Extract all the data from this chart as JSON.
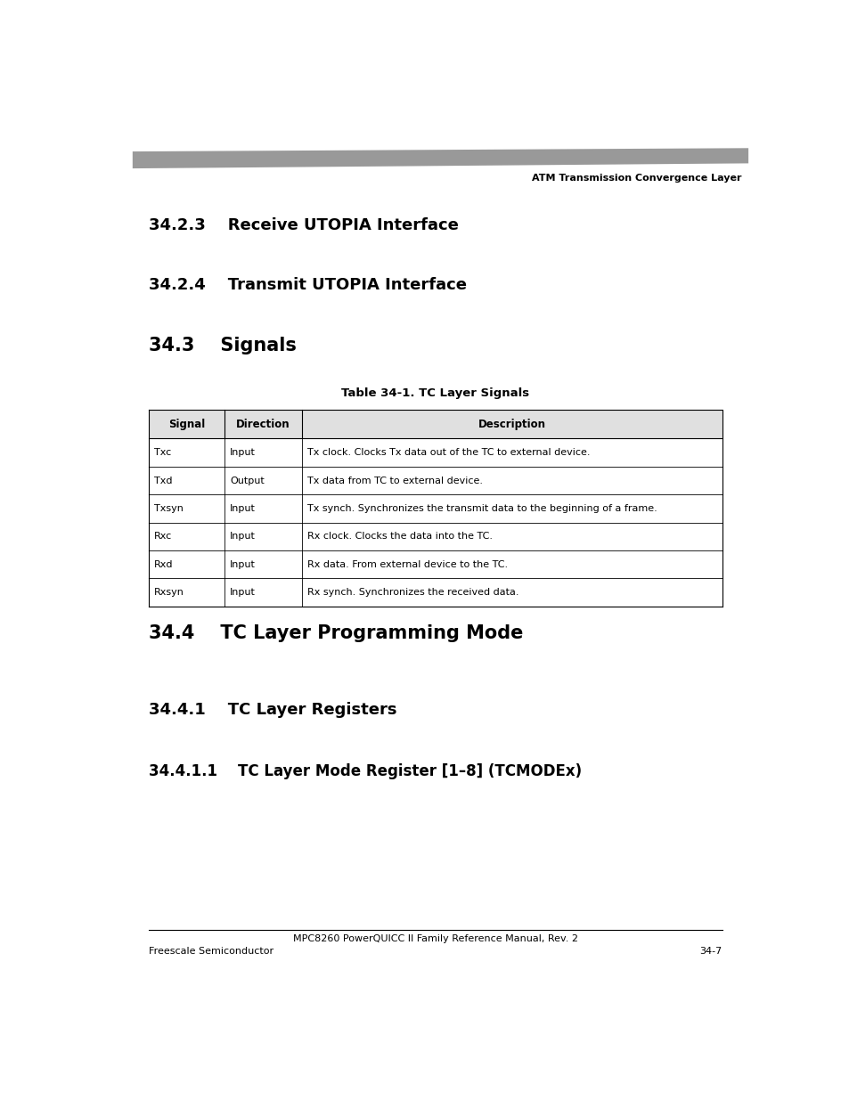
{
  "page_width": 9.54,
  "page_height": 12.35,
  "background_color": "#ffffff",
  "header_bar_color": "#999999",
  "header_text": "ATM Transmission Convergence Layer",
  "section_323_title": "34.2.3    Receive UTOPIA Interface",
  "section_324_title": "34.2.4    Transmit UTOPIA Interface",
  "section_33_title": "34.3    Signals",
  "section_34_title": "34.4    TC Layer Programming Mode",
  "section_341_title": "34.4.1    TC Layer Registers",
  "section_3411_title": "34.4.1.1    TC Layer Mode Register [1–8] (TCMODEx)",
  "table_title": "Table 34-1. TC Layer Signals",
  "table_data": [
    [
      "Txc",
      "Input",
      "Tx clock. Clocks Tx data out of the TC to external device."
    ],
    [
      "Txd",
      "Output",
      "Tx data from TC to external device."
    ],
    [
      "Txsyn",
      "Input",
      "Tx synch. Synchronizes the transmit data to the beginning of a frame."
    ],
    [
      "Rxc",
      "Input",
      "Rx clock. Clocks the data into the TC."
    ],
    [
      "Rxd",
      "Input",
      "Rx data. From external device to the TC."
    ],
    [
      "Rxsyn",
      "Input",
      "Rx synch. Synchronizes the received data."
    ]
  ],
  "footer_center_text": "MPC8260 PowerQUICC II Family Reference Manual, Rev. 2",
  "footer_left_text": "Freescale Semiconductor",
  "footer_right_text": "34-7"
}
